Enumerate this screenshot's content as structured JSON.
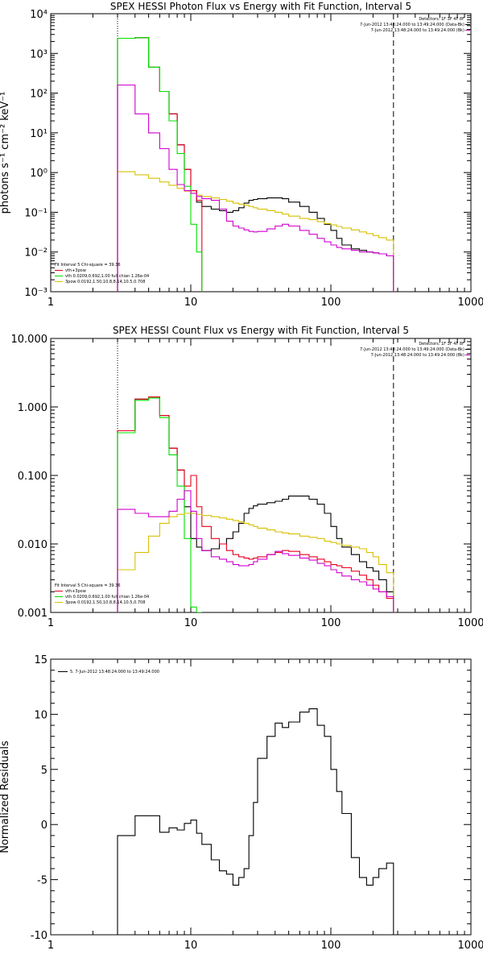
{
  "colors": {
    "black": "#000000",
    "red": "#e8001c",
    "green": "#00e000",
    "yellow": "#d8c000",
    "magenta": "#d000d0",
    "axis": "#000000"
  },
  "chart_data": [
    {
      "type": "line",
      "title": "SPEX HESSI Photon Flux vs Energy with Fit Function, Interval 5",
      "ylabel": "photons s⁻¹ cm⁻² keV⁻¹",
      "xlabel": "",
      "xscale": "log",
      "yscale": "log",
      "xlim": [
        1,
        1000
      ],
      "ylim": [
        0.001,
        10000
      ],
      "xticks": [
        1,
        10,
        100,
        1000
      ],
      "xtick_labels": [
        "1",
        "10",
        "100",
        "1000"
      ],
      "yticks": [
        0.001,
        0.01,
        0.1,
        1,
        10,
        100,
        1000,
        10000
      ],
      "ytick_labels": [
        "10⁻³",
        "10⁻²",
        "10⁻¹",
        "10⁰",
        "10¹",
        "10²",
        "10³",
        "10⁴"
      ],
      "vlines": [
        {
          "x": 3,
          "style": "dotted"
        },
        {
          "x": 280,
          "style": "dashed"
        }
      ],
      "legend_top_right": [
        {
          "text": "Detectors: 1F 3F 4F 8F",
          "color": "black"
        },
        {
          "text": "7-Jun-2012 13:48:24.000 to 13:49:24.000 (Data-Bk)",
          "color": "black"
        },
        {
          "text": "7-Jun-2012 13:48:24.000 to 13:49:24.000 (Bk)",
          "color": "magenta"
        }
      ],
      "legend_bottom_left": [
        {
          "text": "Fit Interval 5   Chi-square = 39.36",
          "color": "black"
        },
        {
          "text": "vth+3pow",
          "color": "red"
        },
        {
          "text": "vth 0.0209,0.692,1.00  full chian 1.26e-04",
          "color": "green"
        },
        {
          "text": "3pow 0.0192,1.50,10.8,8.14,10.5,0.708",
          "color": "yellow"
        }
      ],
      "series": [
        {
          "color": "black",
          "edges": [
            3,
            4,
            5,
            6,
            7,
            8,
            9,
            10,
            11,
            12,
            14,
            16,
            18,
            20,
            22,
            24,
            26,
            28,
            30,
            35,
            40,
            45,
            50,
            60,
            70,
            80,
            90,
            100,
            110,
            120,
            140,
            160,
            180,
            200,
            220,
            250,
            280
          ],
          "values": [
            2400,
            2500,
            450,
            110,
            30,
            5,
            1.2,
            0.35,
            0.18,
            0.14,
            0.12,
            0.11,
            0.1,
            0.11,
            0.13,
            0.17,
            0.2,
            0.21,
            0.22,
            0.23,
            0.23,
            0.22,
            0.18,
            0.14,
            0.1,
            0.07,
            0.05,
            0.035,
            0.022,
            0.015,
            0.012,
            0.011,
            0.01,
            0.0095,
            0.009,
            0.008
          ]
        },
        {
          "color": "red",
          "edges": [
            3,
            4,
            5,
            6,
            7,
            8,
            9,
            10,
            11,
            12
          ],
          "values": [
            2400,
            2500,
            450,
            110,
            30,
            5,
            1.2,
            0.35,
            0.2
          ]
        },
        {
          "color": "green",
          "edges": [
            3,
            4,
            5,
            6,
            7,
            8,
            9,
            10,
            11,
            12
          ],
          "values": [
            2400,
            2500,
            450,
            110,
            20,
            3,
            0.45,
            0.05,
            0.01
          ]
        },
        {
          "color": "yellow",
          "edges": [
            3,
            4,
            5,
            6,
            7,
            8,
            9,
            10,
            11,
            12,
            14,
            16,
            18,
            20,
            22,
            24,
            26,
            28,
            30,
            35,
            40,
            45,
            50,
            60,
            70,
            80,
            90,
            100,
            110,
            120,
            140,
            160,
            180,
            200,
            220,
            250,
            280
          ],
          "values": [
            1.05,
            0.88,
            0.72,
            0.58,
            0.48,
            0.4,
            0.34,
            0.3,
            0.27,
            0.25,
            0.23,
            0.21,
            0.19,
            0.17,
            0.16,
            0.15,
            0.14,
            0.13,
            0.12,
            0.11,
            0.1,
            0.09,
            0.08,
            0.07,
            0.065,
            0.058,
            0.052,
            0.048,
            0.044,
            0.04,
            0.036,
            0.032,
            0.029,
            0.026,
            0.023,
            0.02
          ]
        },
        {
          "color": "magenta",
          "edges": [
            3,
            4,
            5,
            6,
            7,
            8,
            9,
            10,
            11,
            12,
            14,
            16,
            18,
            20,
            22,
            24,
            26,
            28,
            30,
            35,
            40,
            45,
            50,
            60,
            70,
            80,
            90,
            100,
            110,
            120,
            140,
            160,
            180,
            200,
            220,
            250,
            280
          ],
          "values": [
            160,
            30,
            10,
            4,
            1.2,
            0.5,
            0.35,
            0.3,
            0.25,
            0.22,
            0.2,
            0.12,
            0.06,
            0.045,
            0.04,
            0.036,
            0.033,
            0.032,
            0.033,
            0.038,
            0.045,
            0.05,
            0.045,
            0.035,
            0.028,
            0.022,
            0.018,
            0.015,
            0.013,
            0.012,
            0.011,
            0.01,
            0.01,
            0.0095,
            0.009,
            0.008
          ]
        }
      ]
    },
    {
      "type": "line",
      "title": "SPEX HESSI Count Flux vs Energy with Fit Function, Interval 5",
      "ylabel": "",
      "xlabel": "",
      "xscale": "log",
      "yscale": "log",
      "xlim": [
        1,
        1000
      ],
      "ylim": [
        0.001,
        10
      ],
      "xticks": [
        1,
        10,
        100,
        1000
      ],
      "xtick_labels": [
        "1",
        "10",
        "100",
        "1000"
      ],
      "yticks": [
        0.001,
        0.01,
        0.1,
        1,
        10
      ],
      "ytick_labels": [
        "0.001",
        "0.010",
        "0.100",
        "1.000",
        "10.000"
      ],
      "vlines": [
        {
          "x": 3,
          "style": "dotted"
        },
        {
          "x": 280,
          "style": "dashed"
        }
      ],
      "legend_top_right": [
        {
          "text": "Detectors: 1F 3F 4F 8F",
          "color": "black"
        },
        {
          "text": "7-Jun-2012 13:48:24.000 to 13:49:24.000 (Data-Bk)",
          "color": "black"
        },
        {
          "text": "7-Jun-2012 13:48:24.000 to 13:49:24.000 (Bk)",
          "color": "magenta"
        }
      ],
      "legend_bottom_left": [
        {
          "text": "Fit Interval 5   Chi-square = 39.36",
          "color": "black"
        },
        {
          "text": "vth+3pow",
          "color": "red"
        },
        {
          "text": "vth 0.0209,0.692,1.00  full chian 1.26e-04",
          "color": "green"
        },
        {
          "text": "3pow 0.0192,1.50,10.8,8.14,10.5,0.708",
          "color": "yellow"
        }
      ],
      "series": [
        {
          "color": "black",
          "edges": [
            3,
            4,
            5,
            6,
            7,
            8,
            9,
            10,
            11,
            12,
            14,
            16,
            18,
            20,
            22,
            24,
            26,
            28,
            30,
            35,
            40,
            45,
            50,
            60,
            70,
            80,
            90,
            100,
            110,
            120,
            140,
            160,
            180,
            200,
            220,
            250,
            280
          ],
          "values": [
            0.45,
            1.3,
            1.4,
            0.75,
            0.25,
            0.12,
            0.035,
            0.012,
            0.009,
            0.008,
            0.0085,
            0.01,
            0.012,
            0.015,
            0.02,
            0.028,
            0.033,
            0.036,
            0.038,
            0.04,
            0.042,
            0.045,
            0.05,
            0.05,
            0.045,
            0.038,
            0.028,
            0.018,
            0.012,
            0.009,
            0.007,
            0.0055,
            0.0045,
            0.004,
            0.003,
            0.002
          ]
        },
        {
          "color": "red",
          "edges": [
            3,
            4,
            5,
            6,
            7,
            8,
            9,
            10,
            11,
            12,
            14,
            16,
            18,
            20,
            22,
            24,
            26,
            28,
            30,
            35,
            40,
            45,
            50,
            60,
            70,
            80,
            90,
            100,
            110,
            120,
            140,
            160,
            180,
            200,
            220,
            250,
            280
          ],
          "values": [
            0.45,
            1.3,
            1.4,
            0.75,
            0.25,
            0.12,
            0.07,
            0.1,
            0.035,
            0.018,
            0.012,
            0.01,
            0.008,
            0.007,
            0.0065,
            0.0062,
            0.006,
            0.0062,
            0.0065,
            0.007,
            0.0075,
            0.008,
            0.0078,
            0.007,
            0.0065,
            0.006,
            0.0055,
            0.005,
            0.0048,
            0.0045,
            0.004,
            0.0035,
            0.003,
            0.0025,
            0.002,
            0.0016
          ]
        },
        {
          "color": "green",
          "edges": [
            3,
            4,
            5,
            6,
            7,
            8,
            9,
            10,
            11,
            12
          ],
          "values": [
            0.42,
            1.25,
            1.35,
            0.7,
            0.2,
            0.07,
            0.012,
            0.0012,
            0.0002
          ]
        },
        {
          "color": "yellow",
          "edges": [
            3,
            4,
            5,
            6,
            7,
            8,
            9,
            10,
            11,
            12,
            14,
            16,
            18,
            20,
            22,
            24,
            26,
            28,
            30,
            35,
            40,
            45,
            50,
            60,
            70,
            80,
            90,
            100,
            110,
            120,
            140,
            160,
            180,
            200,
            220,
            250,
            280
          ],
          "values": [
            0.0042,
            0.0075,
            0.013,
            0.02,
            0.025,
            0.027,
            0.028,
            0.028,
            0.027,
            0.026,
            0.025,
            0.024,
            0.023,
            0.022,
            0.021,
            0.02,
            0.019,
            0.018,
            0.017,
            0.016,
            0.015,
            0.0145,
            0.014,
            0.013,
            0.0125,
            0.012,
            0.011,
            0.0105,
            0.01,
            0.0095,
            0.009,
            0.0085,
            0.0075,
            0.0065,
            0.005,
            0.0038
          ]
        },
        {
          "color": "magenta",
          "edges": [
            3,
            4,
            5,
            6,
            7,
            8,
            9,
            10,
            11,
            12,
            14,
            16,
            18,
            20,
            22,
            24,
            26,
            28,
            30,
            35,
            40,
            45,
            50,
            60,
            70,
            80,
            90,
            100,
            110,
            120,
            140,
            160,
            180,
            200,
            220,
            250,
            280
          ],
          "values": [
            0.032,
            0.028,
            0.025,
            0.025,
            0.03,
            0.045,
            0.06,
            0.03,
            0.012,
            0.008,
            0.0065,
            0.006,
            0.0055,
            0.005,
            0.0048,
            0.0048,
            0.005,
            0.0055,
            0.006,
            0.007,
            0.0078,
            0.0072,
            0.0068,
            0.0062,
            0.0058,
            0.0052,
            0.0048,
            0.0042,
            0.0038,
            0.0034,
            0.003,
            0.0028,
            0.0025,
            0.0022,
            0.002,
            0.0017
          ]
        }
      ]
    },
    {
      "type": "line",
      "title": "",
      "ylabel": "Normalized Residuals",
      "xlabel": "",
      "xscale": "log",
      "yscale": "linear",
      "xlim": [
        1,
        1000
      ],
      "ylim": [
        -10,
        15
      ],
      "xticks": [
        1,
        10,
        100,
        1000
      ],
      "xtick_labels": [
        "1",
        "10",
        "100",
        "1000"
      ],
      "yticks": [
        -10,
        -5,
        0,
        5,
        10,
        15
      ],
      "ytick_labels": [
        "-10",
        "-5",
        "0",
        "5",
        "10",
        "15"
      ],
      "vlines": [],
      "legend_top_left": [
        {
          "text": "5.  7-Jun-2012 13:48:24.000 to 13:49:24.000",
          "color": "black"
        }
      ],
      "series": [
        {
          "color": "black",
          "edges": [
            3,
            4,
            5,
            6,
            7,
            8,
            9,
            10,
            11,
            12,
            14,
            16,
            18,
            20,
            22,
            24,
            26,
            28,
            30,
            35,
            40,
            45,
            50,
            60,
            70,
            80,
            90,
            100,
            110,
            120,
            140,
            160,
            180,
            200,
            220,
            250,
            280
          ],
          "values": [
            -1,
            0.8,
            0.8,
            -0.7,
            -0.3,
            -0.5,
            0.1,
            0.4,
            -0.8,
            -1.8,
            -3.2,
            -4.2,
            -4.5,
            -5.5,
            -4.8,
            -4,
            -1,
            2,
            6,
            8,
            9.2,
            8.8,
            9.3,
            10.2,
            10.5,
            9,
            8,
            5,
            3,
            1,
            -3,
            -4.8,
            -5.5,
            -4.8,
            -4,
            -3.5
          ]
        }
      ]
    }
  ]
}
